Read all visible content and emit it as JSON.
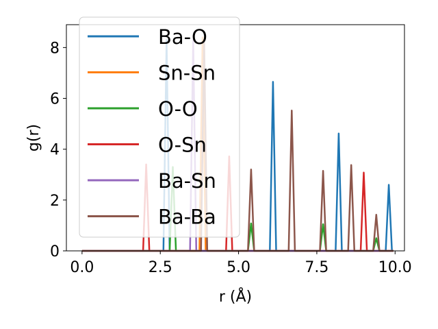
{
  "chart_data": {
    "type": "line",
    "xlabel": "r (Å)",
    "ylabel": "g(r)",
    "xlim": [
      -0.5,
      10.3
    ],
    "ylim": [
      0,
      8.9
    ],
    "x_ticks": [
      "0.0",
      "2.5",
      "5.0",
      "7.5",
      "10.0"
    ],
    "x_tick_values": [
      0,
      2.5,
      5.0,
      7.5,
      10.0
    ],
    "y_ticks": [
      "0",
      "2",
      "4",
      "6",
      "8"
    ],
    "y_tick_values": [
      0,
      2,
      4,
      6,
      8
    ],
    "grid": false,
    "legend_position": "top-left",
    "peak_half_width": 0.1,
    "series": [
      {
        "name": "Ba-O",
        "color": "#1f77b4",
        "peaks": [
          [
            2.7,
            8.3
          ],
          [
            6.1,
            6.65
          ],
          [
            8.2,
            4.62
          ],
          [
            9.8,
            2.6
          ]
        ]
      },
      {
        "name": "Sn-Sn",
        "color": "#ff7f0e",
        "peaks": [
          [
            3.85,
            8.4
          ]
        ]
      },
      {
        "name": "O-O",
        "color": "#2ca02c",
        "peaks": [
          [
            2.9,
            3.3
          ],
          [
            5.4,
            1.08
          ],
          [
            7.7,
            1.05
          ],
          [
            9.4,
            0.5
          ]
        ]
      },
      {
        "name": "O-Sn",
        "color": "#d62728",
        "peaks": [
          [
            2.05,
            3.4
          ],
          [
            4.7,
            3.72
          ],
          [
            9.0,
            3.08
          ]
        ]
      },
      {
        "name": "Ba-Sn",
        "color": "#9467bd",
        "peaks": [
          [
            3.55,
            8.3
          ]
        ]
      },
      {
        "name": "Ba-Ba",
        "color": "#8c564b",
        "peaks": [
          [
            3.9,
            8.3
          ],
          [
            5.4,
            3.2
          ],
          [
            6.7,
            5.52
          ],
          [
            7.7,
            3.15
          ],
          [
            8.6,
            3.38
          ],
          [
            9.4,
            1.42
          ]
        ]
      }
    ]
  }
}
